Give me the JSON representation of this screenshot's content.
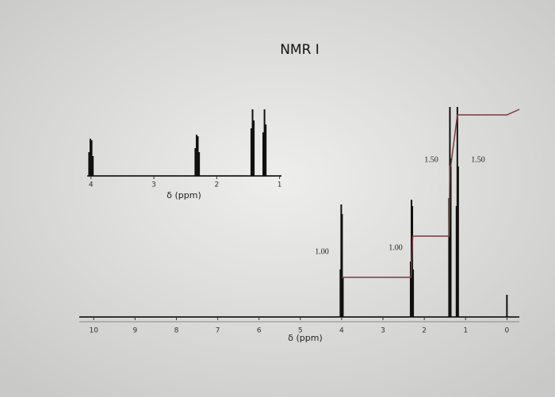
{
  "chart_data": [
    {
      "type": "spectrum",
      "title": "NMR I",
      "x_label": "δ (ppm)",
      "xlim": [
        10.35,
        -0.3
      ],
      "xticks": [
        10,
        9,
        8,
        7,
        6,
        5,
        4,
        3,
        2,
        1,
        0
      ],
      "ylim": [
        0,
        280
      ],
      "x": [
        4.03,
        4.01,
        3.99,
        3.97,
        2.33,
        2.31,
        2.29,
        2.27,
        1.4,
        1.38,
        1.36,
        1.22,
        1.2,
        1.18,
        0.0
      ],
      "values": [
        60,
        142,
        130,
        50,
        70,
        148,
        140,
        60,
        150,
        265,
        200,
        140,
        265,
        190,
        28
      ],
      "color": "#111111",
      "integral": {
        "color": "#7a3b3b",
        "x": [
          4.0,
          2.32,
          2.28,
          1.4,
          1.38,
          1.36,
          1.2,
          1.16,
          0.0,
          -0.3
        ],
        "values": [
          50,
          50,
          102,
          102,
          190,
          190,
          255,
          255,
          255,
          262
        ]
      },
      "annotations": [
        "1.00",
        "1.00",
        "1.50",
        "1.50"
      ]
    },
    {
      "type": "spectrum",
      "x_label": "δ (ppm)",
      "xlim": [
        4.06,
        0.97
      ],
      "xticks": [
        4,
        3,
        2,
        1
      ],
      "ylim": [
        0,
        90
      ],
      "x": [
        4.03,
        4.01,
        3.99,
        3.97,
        2.34,
        2.32,
        2.3,
        2.28,
        1.45,
        1.43,
        1.41,
        1.26,
        1.24,
        1.22
      ],
      "values": [
        30,
        47,
        45,
        25,
        35,
        52,
        50,
        30,
        60,
        84,
        70,
        55,
        84,
        65
      ],
      "color": "#111111"
    }
  ]
}
